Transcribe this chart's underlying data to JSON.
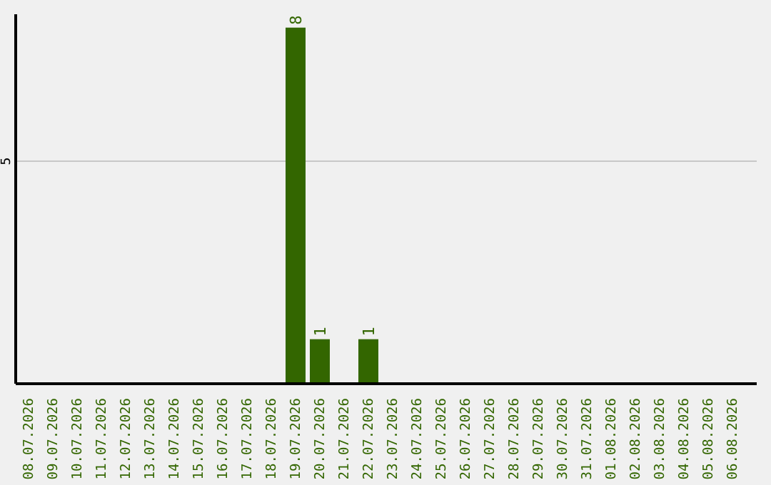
{
  "chart_data": {
    "type": "bar",
    "categories": [
      "08.07.2026",
      "09.07.2026",
      "10.07.2026",
      "11.07.2026",
      "12.07.2026",
      "13.07.2026",
      "14.07.2026",
      "15.07.2026",
      "16.07.2026",
      "17.07.2026",
      "18.07.2026",
      "19.07.2026",
      "20.07.2026",
      "21.07.2026",
      "22.07.2026",
      "23.07.2026",
      "24.07.2026",
      "25.07.2026",
      "26.07.2026",
      "27.07.2026",
      "28.07.2026",
      "29.07.2026",
      "30.07.2026",
      "31.07.2026",
      "01.08.2026",
      "02.08.2026",
      "03.08.2026",
      "04.08.2026",
      "05.08.2026",
      "06.08.2026"
    ],
    "values": [
      0,
      0,
      0,
      0,
      0,
      0,
      0,
      0,
      0,
      0,
      0,
      8,
      1,
      0,
      1,
      0,
      0,
      0,
      0,
      0,
      0,
      0,
      0,
      0,
      0,
      0,
      0,
      0,
      0,
      0
    ],
    "value_labels": [
      null,
      null,
      null,
      null,
      null,
      null,
      null,
      null,
      null,
      null,
      null,
      "8",
      "1",
      null,
      "1",
      null,
      null,
      null,
      null,
      null,
      null,
      null,
      null,
      null,
      null,
      null,
      null,
      null,
      null,
      null
    ],
    "color": "#336600",
    "ylim": [
      0,
      8.3
    ],
    "yticks": [
      5
    ],
    "grid": "y"
  }
}
